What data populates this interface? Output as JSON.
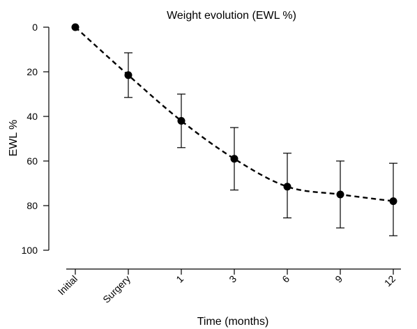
{
  "chart_data": {
    "type": "line",
    "title": "Weight evolution (EWL %)",
    "xlabel": "Time (months)",
    "ylabel": "EWL %",
    "categories": [
      "Initial",
      "Surgery",
      "1",
      "3",
      "6",
      "9",
      "12"
    ],
    "ylim": [
      0,
      100
    ],
    "y_inverted": true,
    "yticks": [
      0,
      20,
      40,
      60,
      80,
      100
    ],
    "grid": false,
    "series": [
      {
        "values": [
          0,
          21.5,
          42,
          59,
          71.5,
          75,
          78
        ],
        "error_lower": [
          0,
          11.5,
          30,
          45,
          56.5,
          60,
          61
        ],
        "error_upper": [
          0,
          31.5,
          54,
          73,
          85.5,
          90,
          93.5
        ],
        "line_style": "dashed",
        "marker": "filled-circle",
        "color": "#000000"
      }
    ]
  }
}
